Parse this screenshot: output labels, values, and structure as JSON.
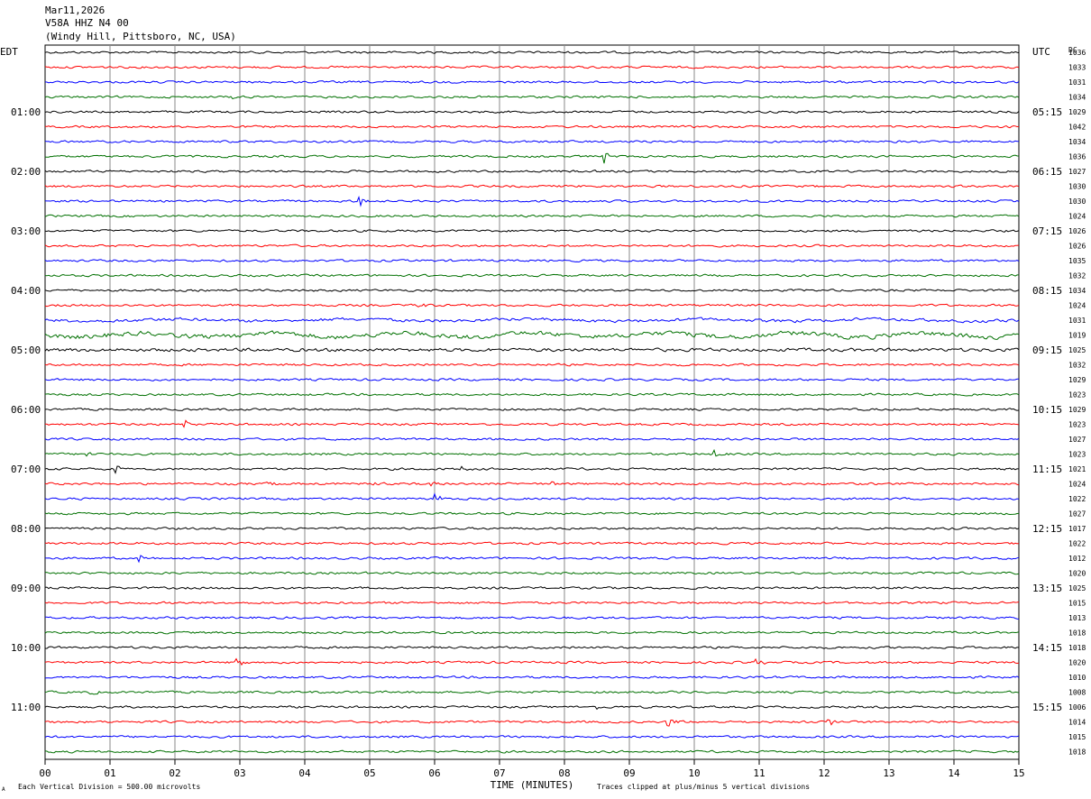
{
  "header": {
    "date": "Mar11,2026",
    "station": "V58A HHZ N4 00",
    "location": "(Windy Hill, Pittsboro, NC, USA)"
  },
  "chart_data": {
    "type": "line",
    "title": "",
    "left_timezone": "EDT",
    "right_timezone": "UTC",
    "right_column_label": "DC",
    "xlabel": "TIME (MINUTES)",
    "x_ticks": [
      "00",
      "01",
      "02",
      "03",
      "04",
      "05",
      "06",
      "07",
      "08",
      "09",
      "10",
      "11",
      "12",
      "13",
      "14",
      "15"
    ],
    "xlim": [
      0,
      15
    ],
    "left_hour_labels": [
      "01:00",
      "02:00",
      "03:00",
      "04:00",
      "05:00",
      "06:00",
      "07:00",
      "08:00",
      "09:00",
      "10:00",
      "11:00"
    ],
    "right_hour_labels": [
      "05:15",
      "06:15",
      "07:15",
      "08:15",
      "09:15",
      "10:15",
      "11:15",
      "12:15",
      "13:15",
      "14:15",
      "15:15"
    ],
    "trace_colors": [
      "#000000",
      "#ff0000",
      "#0000ff",
      "#007000"
    ],
    "dc_offsets": [
      "1036",
      "1033",
      "1031",
      "1034",
      "1029",
      "1042",
      "1034",
      "1036",
      "1027",
      "1030",
      "1030",
      "1024",
      "1026",
      "1026",
      "1035",
      "1032",
      "1034",
      "1024",
      "1031",
      "1019",
      "1025",
      "1032",
      "1029",
      "1023",
      "1029",
      "1023",
      "1027",
      "1023",
      "1021",
      "1024",
      "1022",
      "1027",
      "1017",
      "1022",
      "1012",
      "1020",
      "1025",
      "1015",
      "1013",
      "1018",
      "1018",
      "1020",
      "1010",
      "1008",
      "1006",
      "1014",
      "1015",
      "1018"
    ],
    "footer_scale": "Each Vertical Division =  500.00 microvolts",
    "footer_clip": "Traces clipped at plus/minus 5 vertical divisions",
    "footer_mark": "A"
  }
}
